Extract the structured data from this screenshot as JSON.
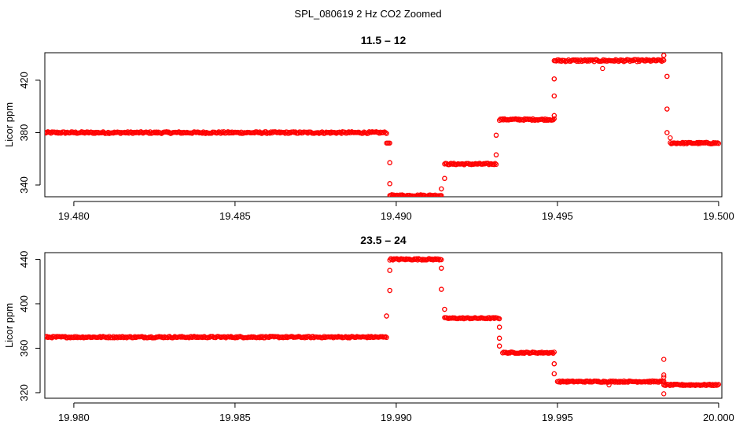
{
  "figure": {
    "title": "SPL_080619  2 Hz CO2 Zoomed"
  },
  "chart_data": [
    {
      "type": "scatter",
      "title": "11.5 – 12",
      "ylabel": "Licor ppm",
      "xlabel": "",
      "xlim": [
        19.4791,
        19.5001
      ],
      "ylim": [
        331,
        441
      ],
      "x_ticks": [
        19.48,
        19.485,
        19.49,
        19.495,
        19.5
      ],
      "x_tick_labels": [
        "19.480",
        "19.485",
        "19.490",
        "19.495",
        "19.500"
      ],
      "y_ticks": [
        340,
        380,
        420
      ],
      "y_tick_labels": [
        "340",
        "380",
        "420"
      ],
      "marker": "open-circle",
      "color": "#ff0000",
      "grid": false,
      "series_segments": [
        {
          "x_start": 19.4791,
          "x_end": 19.4897,
          "y": 380,
          "noise": 0.7
        },
        {
          "x_start": 19.4897,
          "x_end": 19.4898,
          "y": 372
        },
        {
          "x_start": 19.4898,
          "x_end": 19.4898,
          "y": 357
        },
        {
          "x_start": 19.4898,
          "x_end": 19.4898,
          "y": 341
        },
        {
          "x_start": 19.4898,
          "x_end": 19.4914,
          "y": 332,
          "noise": 0.6
        },
        {
          "x_start": 19.4914,
          "x_end": 19.4914,
          "y": 337
        },
        {
          "x_start": 19.4915,
          "x_end": 19.4915,
          "y": 345
        },
        {
          "x_start": 19.4915,
          "x_end": 19.4931,
          "y": 356,
          "noise": 0.6
        },
        {
          "x_start": 19.4931,
          "x_end": 19.4931,
          "y": 363
        },
        {
          "x_start": 19.4931,
          "x_end": 19.4931,
          "y": 378
        },
        {
          "x_start": 19.4932,
          "x_end": 19.4949,
          "y": 390,
          "noise": 0.6
        },
        {
          "x_start": 19.4949,
          "x_end": 19.4949,
          "y": 393
        },
        {
          "x_start": 19.4949,
          "x_end": 19.4949,
          "y": 408
        },
        {
          "x_start": 19.4949,
          "x_end": 19.4949,
          "y": 421
        },
        {
          "x_start": 19.4949,
          "x_end": 19.4983,
          "y": 435,
          "noise": 0.8
        },
        {
          "x_start": 19.4983,
          "x_end": 19.4983,
          "y": 439
        },
        {
          "x_start": 19.4984,
          "x_end": 19.4984,
          "y": 423
        },
        {
          "x_start": 19.4984,
          "x_end": 19.4984,
          "y": 398
        },
        {
          "x_start": 19.4984,
          "x_end": 19.4984,
          "y": 380
        },
        {
          "x_start": 19.4985,
          "x_end": 19.5,
          "y": 372,
          "noise": 0.6
        }
      ],
      "outliers": [
        {
          "x": 19.4964,
          "y": 429
        },
        {
          "x": 19.4985,
          "y": 376
        }
      ]
    },
    {
      "type": "scatter",
      "title": "23.5 – 24",
      "ylabel": "Licor ppm",
      "xlabel": "",
      "xlim": [
        19.9791,
        20.0001
      ],
      "ylim": [
        315,
        446
      ],
      "x_ticks": [
        19.98,
        19.985,
        19.99,
        19.995,
        20.0
      ],
      "x_tick_labels": [
        "19.980",
        "19.985",
        "19.990",
        "19.995",
        "20.000"
      ],
      "y_ticks": [
        320,
        360,
        400,
        440
      ],
      "y_tick_labels": [
        "320",
        "360",
        "400",
        "440"
      ],
      "marker": "open-circle",
      "color": "#ff0000",
      "grid": false,
      "series_segments": [
        {
          "x_start": 19.9791,
          "x_end": 19.9897,
          "y": 370,
          "noise": 0.7
        },
        {
          "x_start": 19.9897,
          "x_end": 19.9897,
          "y": 389
        },
        {
          "x_start": 19.9898,
          "x_end": 19.9898,
          "y": 412
        },
        {
          "x_start": 19.9898,
          "x_end": 19.9898,
          "y": 430
        },
        {
          "x_start": 19.9898,
          "x_end": 19.9914,
          "y": 440,
          "noise": 0.7
        },
        {
          "x_start": 19.9914,
          "x_end": 19.9914,
          "y": 432
        },
        {
          "x_start": 19.9914,
          "x_end": 19.9914,
          "y": 413
        },
        {
          "x_start": 19.9915,
          "x_end": 19.9915,
          "y": 395
        },
        {
          "x_start": 19.9915,
          "x_end": 19.9932,
          "y": 387,
          "noise": 0.6
        },
        {
          "x_start": 19.9932,
          "x_end": 19.9932,
          "y": 379
        },
        {
          "x_start": 19.9932,
          "x_end": 19.9932,
          "y": 369
        },
        {
          "x_start": 19.9932,
          "x_end": 19.9932,
          "y": 362
        },
        {
          "x_start": 19.9933,
          "x_end": 19.9949,
          "y": 356,
          "noise": 0.6
        },
        {
          "x_start": 19.9949,
          "x_end": 19.9949,
          "y": 346
        },
        {
          "x_start": 19.9949,
          "x_end": 19.9949,
          "y": 337
        },
        {
          "x_start": 19.995,
          "x_end": 19.9983,
          "y": 330,
          "noise": 0.6
        },
        {
          "x_start": 19.9983,
          "x_end": 20.0,
          "y": 327,
          "noise": 0.6
        }
      ],
      "outliers": [
        {
          "x": 19.9966,
          "y": 327
        },
        {
          "x": 19.9983,
          "y": 350
        },
        {
          "x": 19.9983,
          "y": 336
        },
        {
          "x": 19.9983,
          "y": 334
        },
        {
          "x": 19.9983,
          "y": 319
        }
      ]
    }
  ]
}
